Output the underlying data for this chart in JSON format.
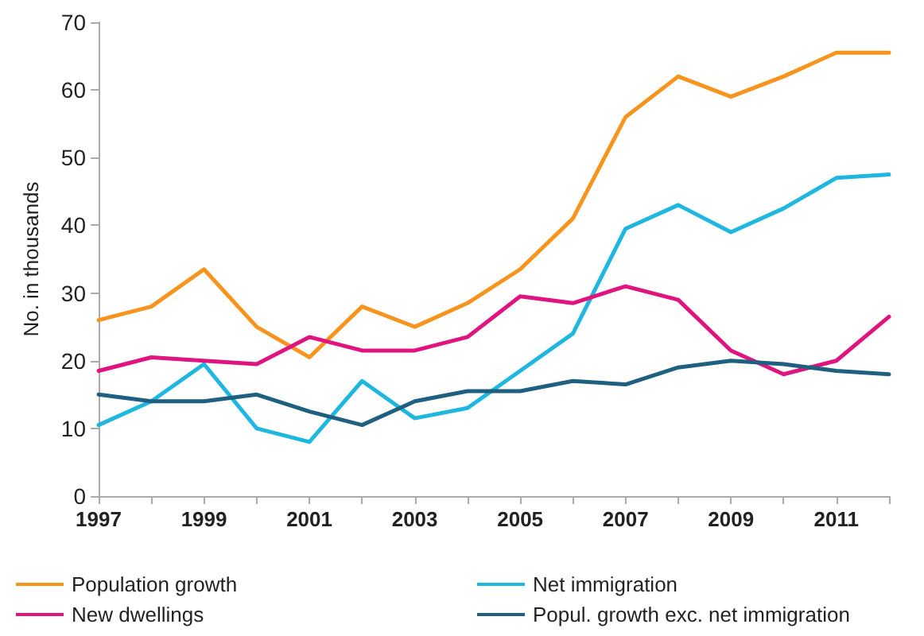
{
  "chart_data": {
    "type": "line",
    "ylabel": "No. in thousands",
    "categories": [
      "1997",
      null,
      "1999",
      null,
      "2001",
      null,
      "2003",
      null,
      "2005",
      null,
      "2007",
      null,
      "2009",
      null,
      "2011",
      null
    ],
    "series": [
      {
        "name": "Population growth",
        "color": "#f7941d",
        "values": [
          26,
          28,
          33.5,
          25,
          20.5,
          28,
          25,
          28.5,
          33.5,
          41,
          56,
          62,
          59,
          62,
          65.5,
          65.5
        ]
      },
      {
        "name": "Net immigration",
        "color": "#1fb6e0",
        "values": [
          10.5,
          14,
          19.5,
          10,
          8,
          17,
          11.5,
          13,
          18.5,
          24,
          39.5,
          43,
          39,
          42.5,
          47,
          47.5
        ]
      },
      {
        "name": "New dwellings",
        "color": "#e0147f",
        "values": [
          18.5,
          20.5,
          20,
          19.5,
          23.5,
          21.5,
          21.5,
          23.5,
          29.5,
          28.5,
          31,
          29,
          21.5,
          18,
          20,
          26.5
        ]
      },
      {
        "name": "Popul. growth exc. net immigration",
        "color": "#1f5f80",
        "values": [
          15,
          14,
          14,
          15,
          12.5,
          10.5,
          14,
          15.5,
          15.5,
          17,
          16.5,
          19,
          20,
          19.5,
          18.5,
          18
        ]
      }
    ],
    "ylim": [
      0,
      70
    ],
    "yticks": [
      0,
      10,
      20,
      30,
      40,
      50,
      60,
      70
    ],
    "grid": false,
    "legend": "bottom",
    "marker": "none",
    "line_style": "solid"
  }
}
